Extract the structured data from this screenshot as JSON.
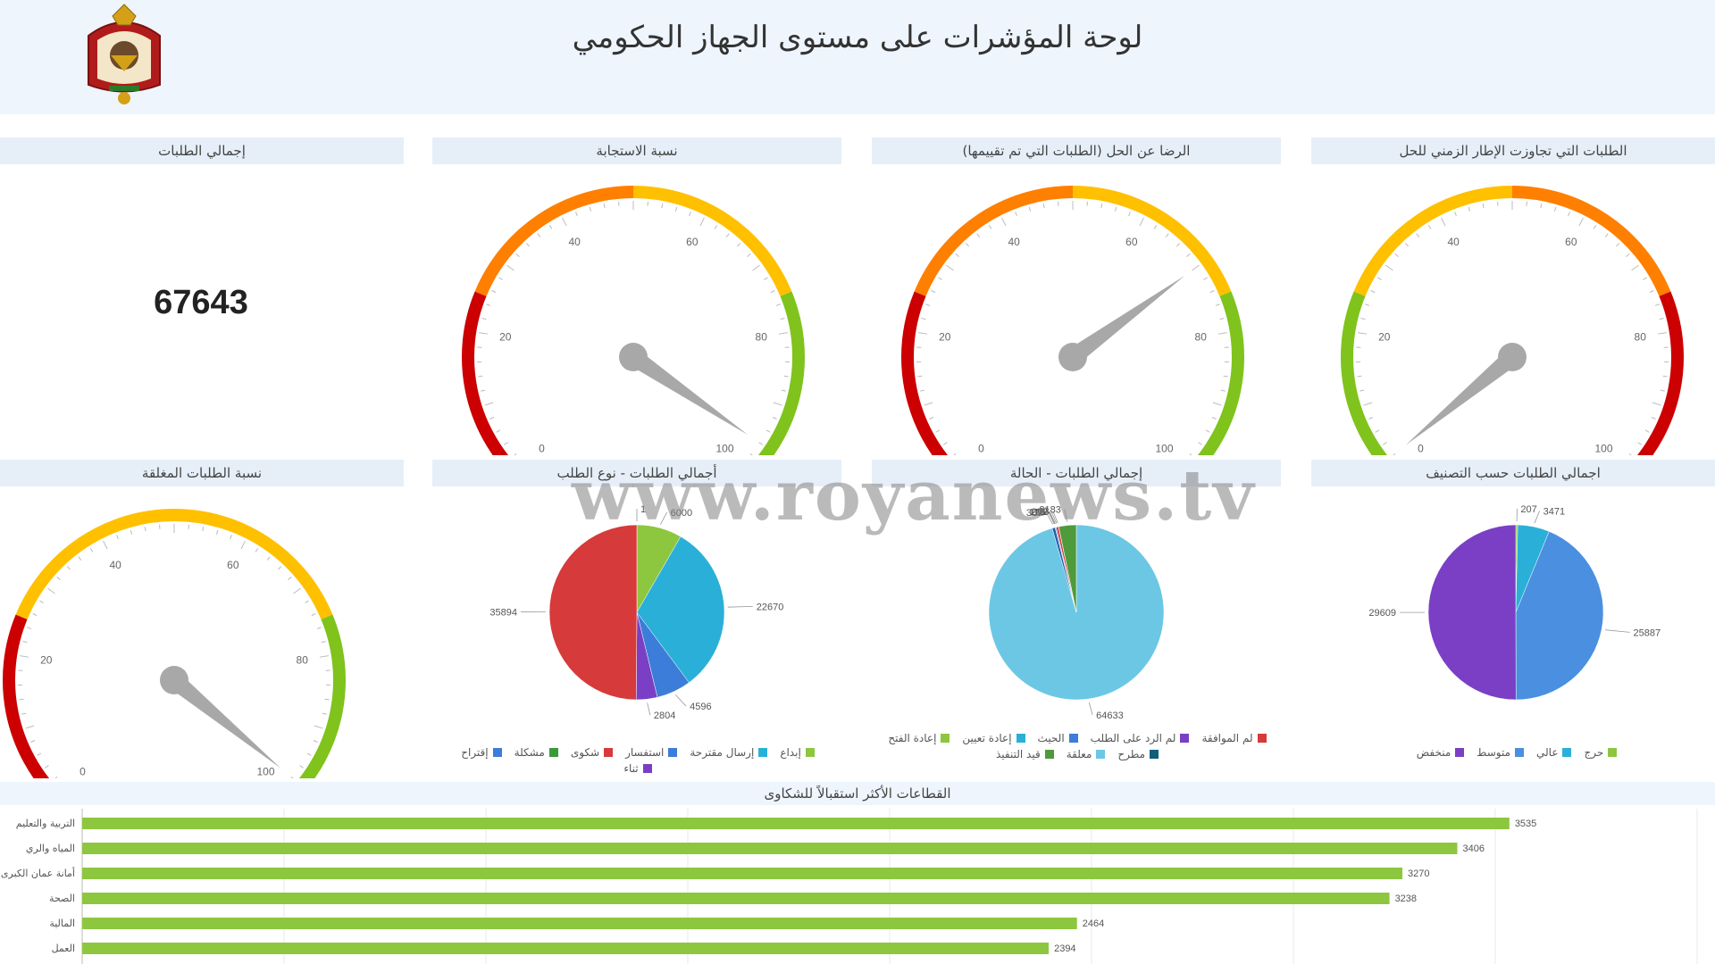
{
  "header": {
    "title": "لوحة المؤشرات على مستوى الجهاز الحكومي"
  },
  "panels": {
    "total": {
      "title": "إجمالي الطلبات",
      "value": "67643"
    },
    "gauges": [
      {
        "id": "response",
        "title": "نسبة الاستجابة",
        "value": 96,
        "ticks": [
          "0",
          "20",
          "40",
          "60",
          "80",
          "100"
        ],
        "bands": [
          "#cc0000",
          "#ff7f00",
          "#ffc000",
          "#7fc31c"
        ]
      },
      {
        "id": "satisfaction",
        "title": "الرضا عن الحل (الطلبات التي تم تقييمها)",
        "value": 70,
        "ticks": [
          "0",
          "20",
          "40",
          "60",
          "80",
          "100"
        ],
        "bands": [
          "#cc0000",
          "#ff7f00",
          "#ffc000",
          "#7fc31c"
        ]
      },
      {
        "id": "overdue",
        "title": "الطلبات التي تجاوزت الإطار الزمني للحل",
        "value": 2,
        "ticks": [
          "0",
          "20",
          "40",
          "60",
          "80",
          "100"
        ],
        "bands": [
          "#7fc31c",
          "#ffc000",
          "#ff7f00",
          "#cc0000"
        ]
      },
      {
        "id": "closed",
        "title": "نسبة الطلبات المغلقة",
        "value": 98,
        "ticks": [
          "0",
          "20",
          "40",
          "60",
          "80",
          "100"
        ],
        "bands": [
          "#cc0000",
          "#ffc000",
          "#ffc000",
          "#7fc31c"
        ]
      }
    ]
  },
  "chart_data": [
    {
      "type": "pie",
      "title": "أجمالي الطلبات - نوع الطلب",
      "labels": [
        "",
        "",
        "",
        "",
        "",
        ""
      ],
      "values": [
        1,
        6000,
        22670,
        4596,
        2804,
        35894
      ],
      "data_labels": [
        "1",
        "6000",
        "22670",
        "4596",
        "2804",
        "35894"
      ],
      "colors": [
        "#3a9a3a",
        "#8dc63f",
        "#2ab0d8",
        "#3b7dd8",
        "#7a3fc4",
        "#d63a3a"
      ],
      "legend": [
        "إبداع",
        "إرسال مقترحة",
        "استفسار",
        "شكوى",
        "مشكلة",
        "إقتراح",
        "ثناء"
      ],
      "legend_colors": [
        "#8dc63f",
        "#2ab0d8",
        "#3b7dd8",
        "#d63a3a",
        "#3a9a3a",
        "#3b7dd8",
        "#7a3fc4"
      ]
    },
    {
      "type": "pie",
      "title": "إجمالي الطلبات - الحالة",
      "values": [
        64633,
        369,
        10,
        128,
        5,
        292,
        23,
        2183
      ],
      "data_labels": [
        "64633",
        "369",
        "10",
        "128",
        "5",
        "292",
        "23",
        "2183"
      ],
      "colors": [
        "#6cc7e4",
        "#1f5fa8",
        "#2ab0d8",
        "#3b7dd8",
        "#7a3fc4",
        "#d63a3a",
        "#0f5e7a",
        "#4f9a3a"
      ],
      "legend": [
        "لم الموافقة",
        "لم الرد على الطلب",
        "الحيث",
        "إعادة تعيين",
        "إعادة الفتح",
        "مطرح",
        "معلقة",
        "قيد التنفيذ"
      ],
      "legend_colors": [
        "#d63a3a",
        "#7a3fc4",
        "#3b7dd8",
        "#2ab0d8",
        "#8dc63f",
        "#0f5e7a",
        "#6cc7e4",
        "#4f9a3a"
      ]
    },
    {
      "type": "pie",
      "title": "اجمالي الطلبات حسب التصنيف",
      "values": [
        207,
        3471,
        25887,
        29609
      ],
      "data_labels": [
        "207",
        "3471",
        "25887",
        "29609"
      ],
      "colors": [
        "#8dc63f",
        "#2ab0d8",
        "#4a8fe0",
        "#7a3fc4"
      ],
      "legend": [
        "حرج",
        "عالي",
        "متوسط",
        "منخفض"
      ],
      "legend_colors": [
        "#8dc63f",
        "#2ab0d8",
        "#4a8fe0",
        "#7a3fc4"
      ]
    },
    {
      "type": "bar",
      "title": "القطاعات الأكثر استقبالاً للشكاوى",
      "categories": [
        "التربية والتعليم",
        "المياه والري",
        "أمانة عمان الكبرى",
        "الصحة",
        "المالية",
        "العمل"
      ],
      "values": [
        3535,
        3406,
        3270,
        3238,
        2464,
        2394
      ],
      "xlim": [
        0,
        4000
      ],
      "color": "#8dc63f"
    }
  ],
  "watermark": "www.royanews.tv"
}
